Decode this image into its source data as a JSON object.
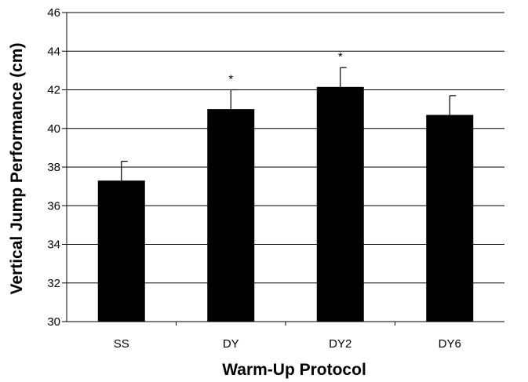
{
  "chart_data": {
    "type": "bar",
    "title": "",
    "xlabel": "Warm-Up Protocol",
    "ylabel": "Vertical Jump Performance (cm)",
    "categories": [
      "SS",
      "DY",
      "DY2",
      "DY6"
    ],
    "values": [
      37.3,
      41.0,
      42.15,
      40.7
    ],
    "errors": [
      1.0,
      1.0,
      1.0,
      1.0
    ],
    "significance": [
      "",
      "*",
      "*",
      ""
    ],
    "ylim": [
      30,
      46
    ],
    "yticks": [
      30,
      32,
      34,
      36,
      38,
      40,
      42,
      44,
      46
    ],
    "grid": true,
    "legend": "none",
    "colors": {
      "bar": "#000000",
      "grid": "#000000",
      "axis": "#000000"
    }
  }
}
